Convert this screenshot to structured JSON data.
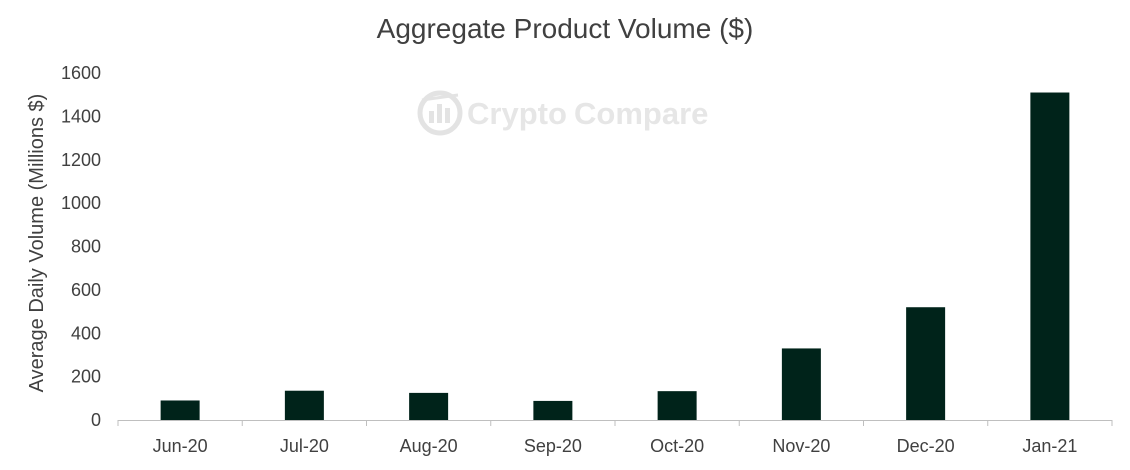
{
  "chart_data": {
    "type": "bar",
    "title": "Aggregate Product Volume ($)",
    "xlabel": "",
    "ylabel": "Average Daily Volume (Millions $)",
    "categories": [
      "Jun-20",
      "Jul-20",
      "Aug-20",
      "Sep-20",
      "Oct-20",
      "Nov-20",
      "Dec-20",
      "Jan-21"
    ],
    "values": [
      90,
      135,
      125,
      88,
      133,
      330,
      520,
      1510
    ],
    "ylim": [
      0,
      1600
    ],
    "yticks": [
      0,
      200,
      400,
      600,
      800,
      1000,
      1200,
      1400,
      1600
    ],
    "grid": false,
    "legend": null,
    "bar_color": "#00231a",
    "axis_color": "#bfbfbf",
    "text_color": "#404040"
  },
  "watermark": {
    "brand_part1": "Crypto",
    "brand_part2": "Compare",
    "icon": "cryptocompare-logo-icon",
    "color": "#e6e6e6"
  }
}
